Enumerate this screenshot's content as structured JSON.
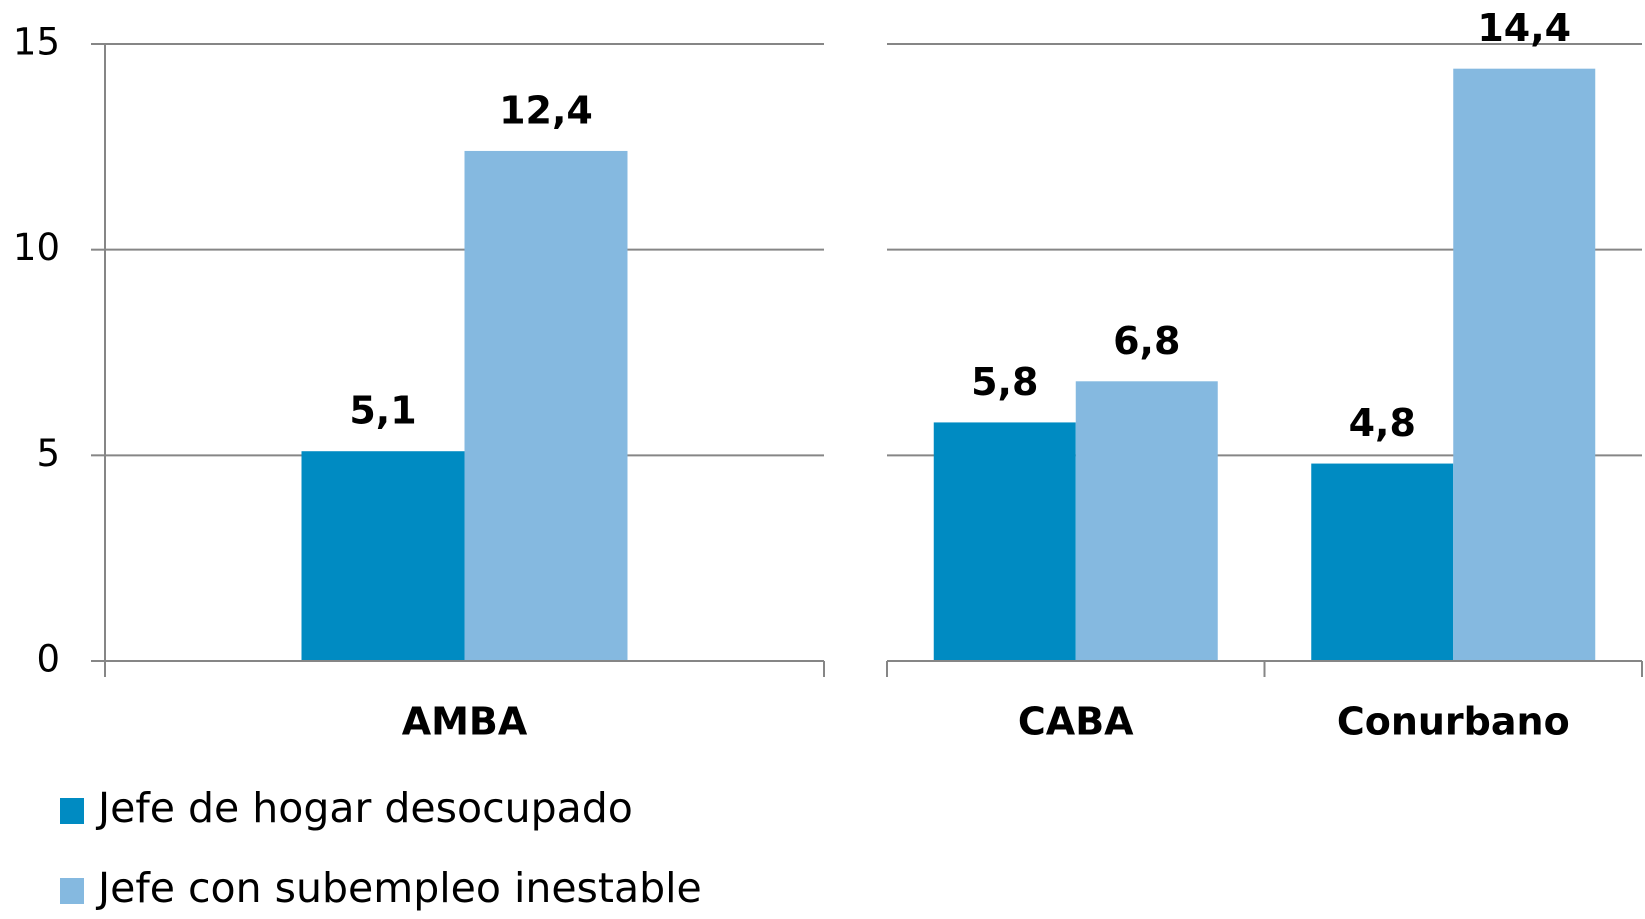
{
  "chart_data": [
    {
      "type": "bar",
      "categories": [
        "AMBA"
      ],
      "series": [
        {
          "name": "Jefe de hogar desocupado",
          "color": "#008bc2",
          "values": [
            5.1
          ],
          "value_labels": [
            "5,1"
          ]
        },
        {
          "name": "Jefe con subempleo inestable",
          "color": "#85b9e0",
          "values": [
            12.4
          ],
          "value_labels": [
            "12,4"
          ]
        }
      ],
      "ylim": [
        0,
        15
      ],
      "yticks": [
        0,
        5,
        10,
        15
      ],
      "grid": true
    },
    {
      "type": "bar",
      "categories": [
        "CABA",
        "Conurbano"
      ],
      "series": [
        {
          "color": "#008bc2",
          "values": [
            5.8,
            4.8
          ],
          "value_labels": [
            "5,8",
            "4,8"
          ]
        },
        {
          "color": "#85b9e0",
          "values": [
            6.8,
            14.4
          ],
          "value_labels": [
            "6,8",
            "14,4"
          ]
        }
      ],
      "ylim": [
        0,
        15
      ],
      "yticks": [
        0,
        5,
        10,
        15
      ],
      "grid": true
    }
  ]
}
